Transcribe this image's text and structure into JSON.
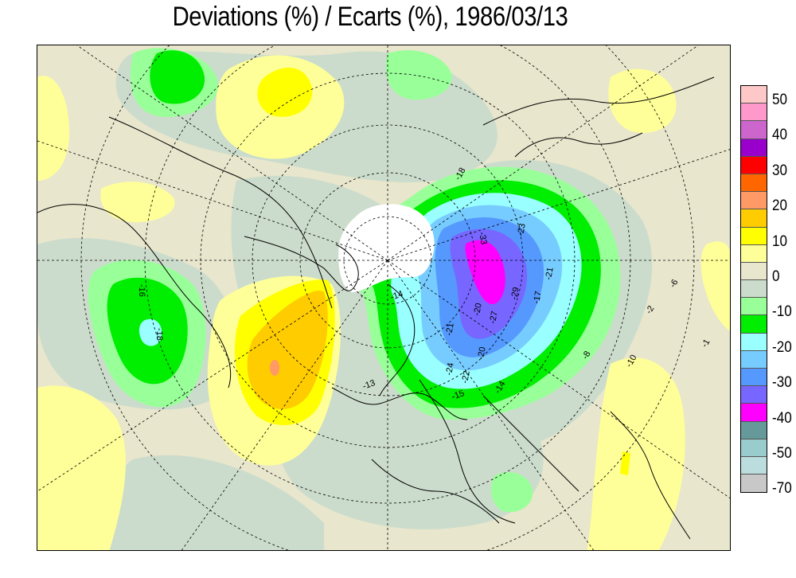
{
  "title": "Deviations (%) / Ecarts (%), 1986/03/13",
  "legend": {
    "labels": [
      "50",
      "40",
      "30",
      "20",
      "10",
      "0",
      "-10",
      "-20",
      "-30",
      "-40",
      "-50",
      "-70"
    ],
    "colors": [
      "#ffc8c8",
      "#ff99cc",
      "#cc66cc",
      "#9900cc",
      "#ff0000",
      "#ff6600",
      "#ff9966",
      "#ffcc00",
      "#ffff00",
      "#ffff99",
      "#e8e6cc",
      "#ccdccc",
      "#99ff99",
      "#00ee00",
      "#99ffff",
      "#77ccff",
      "#5599ff",
      "#7766ff",
      "#ff00ff",
      "#669999",
      "#99cccc",
      "#bbdddd",
      "#c8c8c8"
    ]
  },
  "contour_labels": [
    "-16",
    "-18",
    "-14",
    "-21",
    "-33",
    "-23",
    "-21",
    "-17",
    "-29",
    "-20",
    "-27",
    "-20",
    "-22",
    "-24",
    "-15",
    "-14",
    "-13",
    "-18",
    "-10",
    "-8",
    "-2",
    "-1",
    "-6"
  ],
  "colors": {
    "zero_band": "#e8e6cc",
    "near_zero_neg": "#ccdccc",
    "pale_yellow": "#ffff99",
    "yellow": "#ffff00",
    "orange": "#ffcc00",
    "salmon": "#ff9966",
    "light_green": "#99ff99",
    "green": "#00ee00",
    "cyan": "#99ffff",
    "light_blue": "#77ccff",
    "blue": "#5599ff",
    "violet": "#7766ff",
    "magenta": "#ff00ff",
    "polar_mask": "#ffffff"
  }
}
